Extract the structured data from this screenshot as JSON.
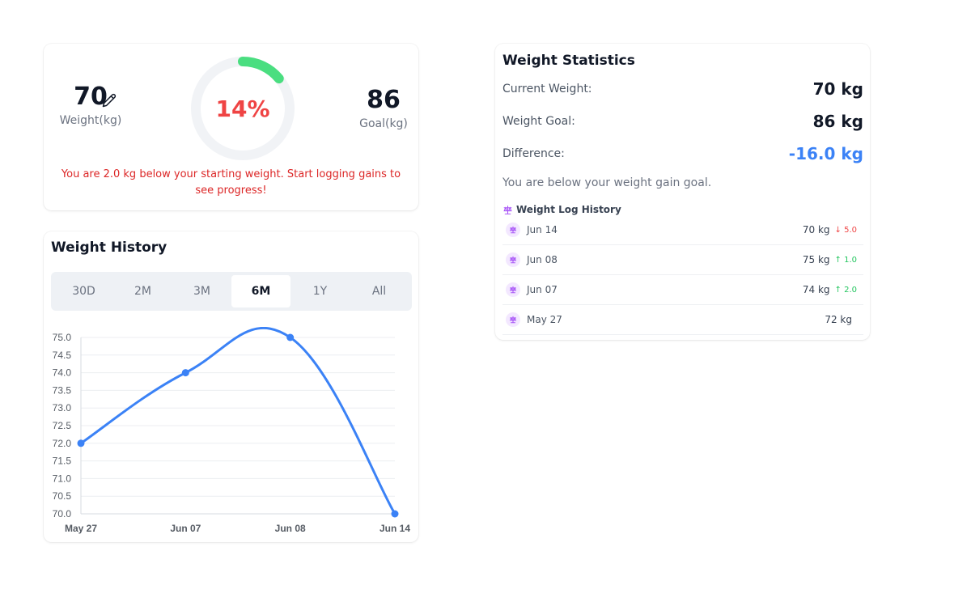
{
  "progress": {
    "current_weight": "70",
    "current_label": "Weight(kg)",
    "goal_weight": "86",
    "goal_label": "Goal(kg)",
    "percent_text": "14%",
    "percent": 14,
    "message": "You are 2.0 kg below your starting weight. Start logging gains to see progress!",
    "colors": {
      "ring": "#4ade80",
      "track": "#f1f3f6",
      "percent": "#ef4444"
    }
  },
  "history": {
    "title": "Weight History",
    "tabs": [
      {
        "label": "30D",
        "active": false
      },
      {
        "label": "2M",
        "active": false
      },
      {
        "label": "3M",
        "active": false
      },
      {
        "label": "6M",
        "active": true
      },
      {
        "label": "1Y",
        "active": false
      },
      {
        "label": "All",
        "active": false
      }
    ]
  },
  "chart_data": {
    "type": "line",
    "categories": [
      "May 27",
      "Jun 07",
      "Jun 08",
      "Jun 14"
    ],
    "series": [
      {
        "values": [
          72,
          74,
          75,
          70
        ]
      }
    ],
    "ylim": [
      70,
      75
    ],
    "yticks": [
      "75.0",
      "74.5",
      "74.0",
      "73.5",
      "73.0",
      "72.5",
      "72.0",
      "71.5",
      "71.0",
      "70.5",
      "70.0"
    ],
    "grid": true,
    "color": "#3b82f6"
  },
  "stats": {
    "title": "Weight Statistics",
    "current_label": "Current Weight:",
    "current_value": "70 kg",
    "goal_label": "Weight Goal:",
    "goal_value": "86 kg",
    "diff_label": "Difference:",
    "diff_value": "-16.0 kg",
    "message": "You are below your weight gain goal.",
    "log_title": "Weight Log History",
    "log": [
      {
        "date": "Jun 14",
        "weight": "70 kg",
        "change": "↓ 5.0",
        "dir": "down"
      },
      {
        "date": "Jun 08",
        "weight": "75 kg",
        "change": "↑ 1.0",
        "dir": "up"
      },
      {
        "date": "Jun 07",
        "weight": "74 kg",
        "change": "↑ 2.0",
        "dir": "up"
      },
      {
        "date": "May 27",
        "weight": "72 kg",
        "change": "",
        "dir": "none"
      }
    ]
  }
}
